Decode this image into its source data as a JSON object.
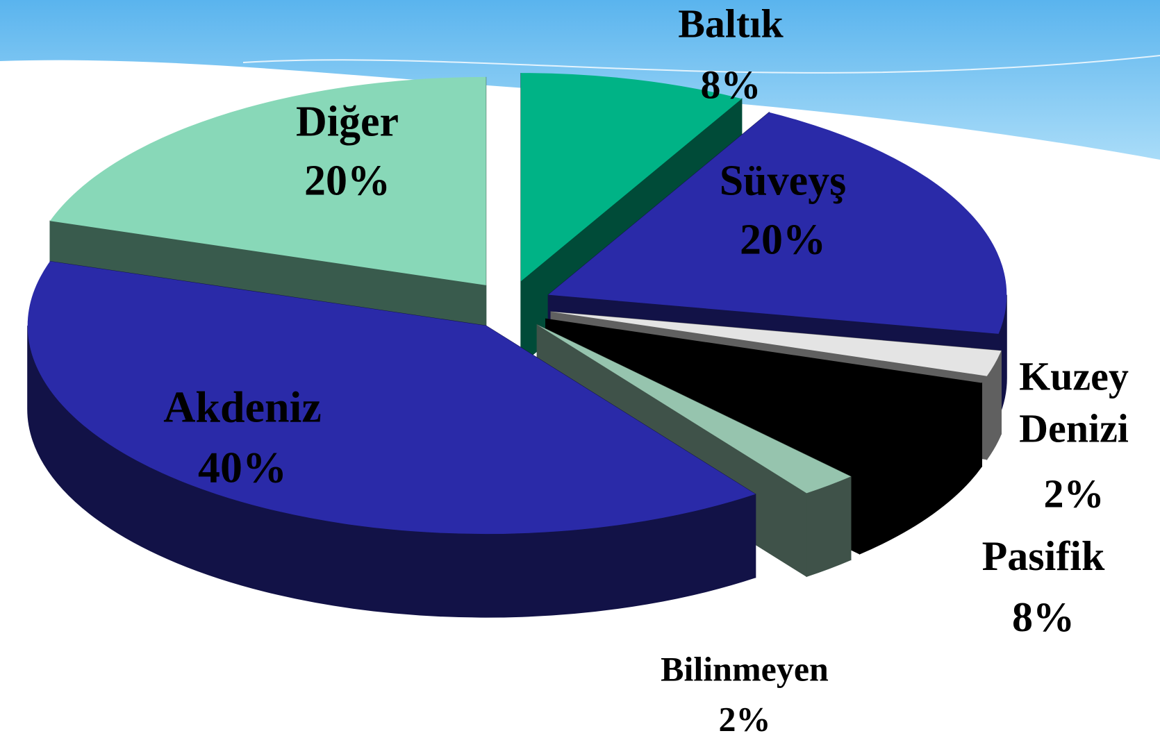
{
  "chart_data": {
    "type": "pie",
    "categories": [
      "Baltık",
      "Süveyş",
      "Kuzey Denizi",
      "Pasifik",
      "Bilinmeyen",
      "Akdeniz",
      "Diğer"
    ],
    "values": [
      8,
      20,
      2,
      8,
      2,
      40,
      20
    ],
    "value_labels": [
      "8%",
      "20%",
      "2%",
      "8%",
      "2%",
      "40%",
      "20%"
    ],
    "colors": [
      "#00b386",
      "#2a2aa8",
      "#e4e4e4",
      "#000000",
      "#96c4ae",
      "#2a2aa8",
      "#88d8b8"
    ]
  }
}
